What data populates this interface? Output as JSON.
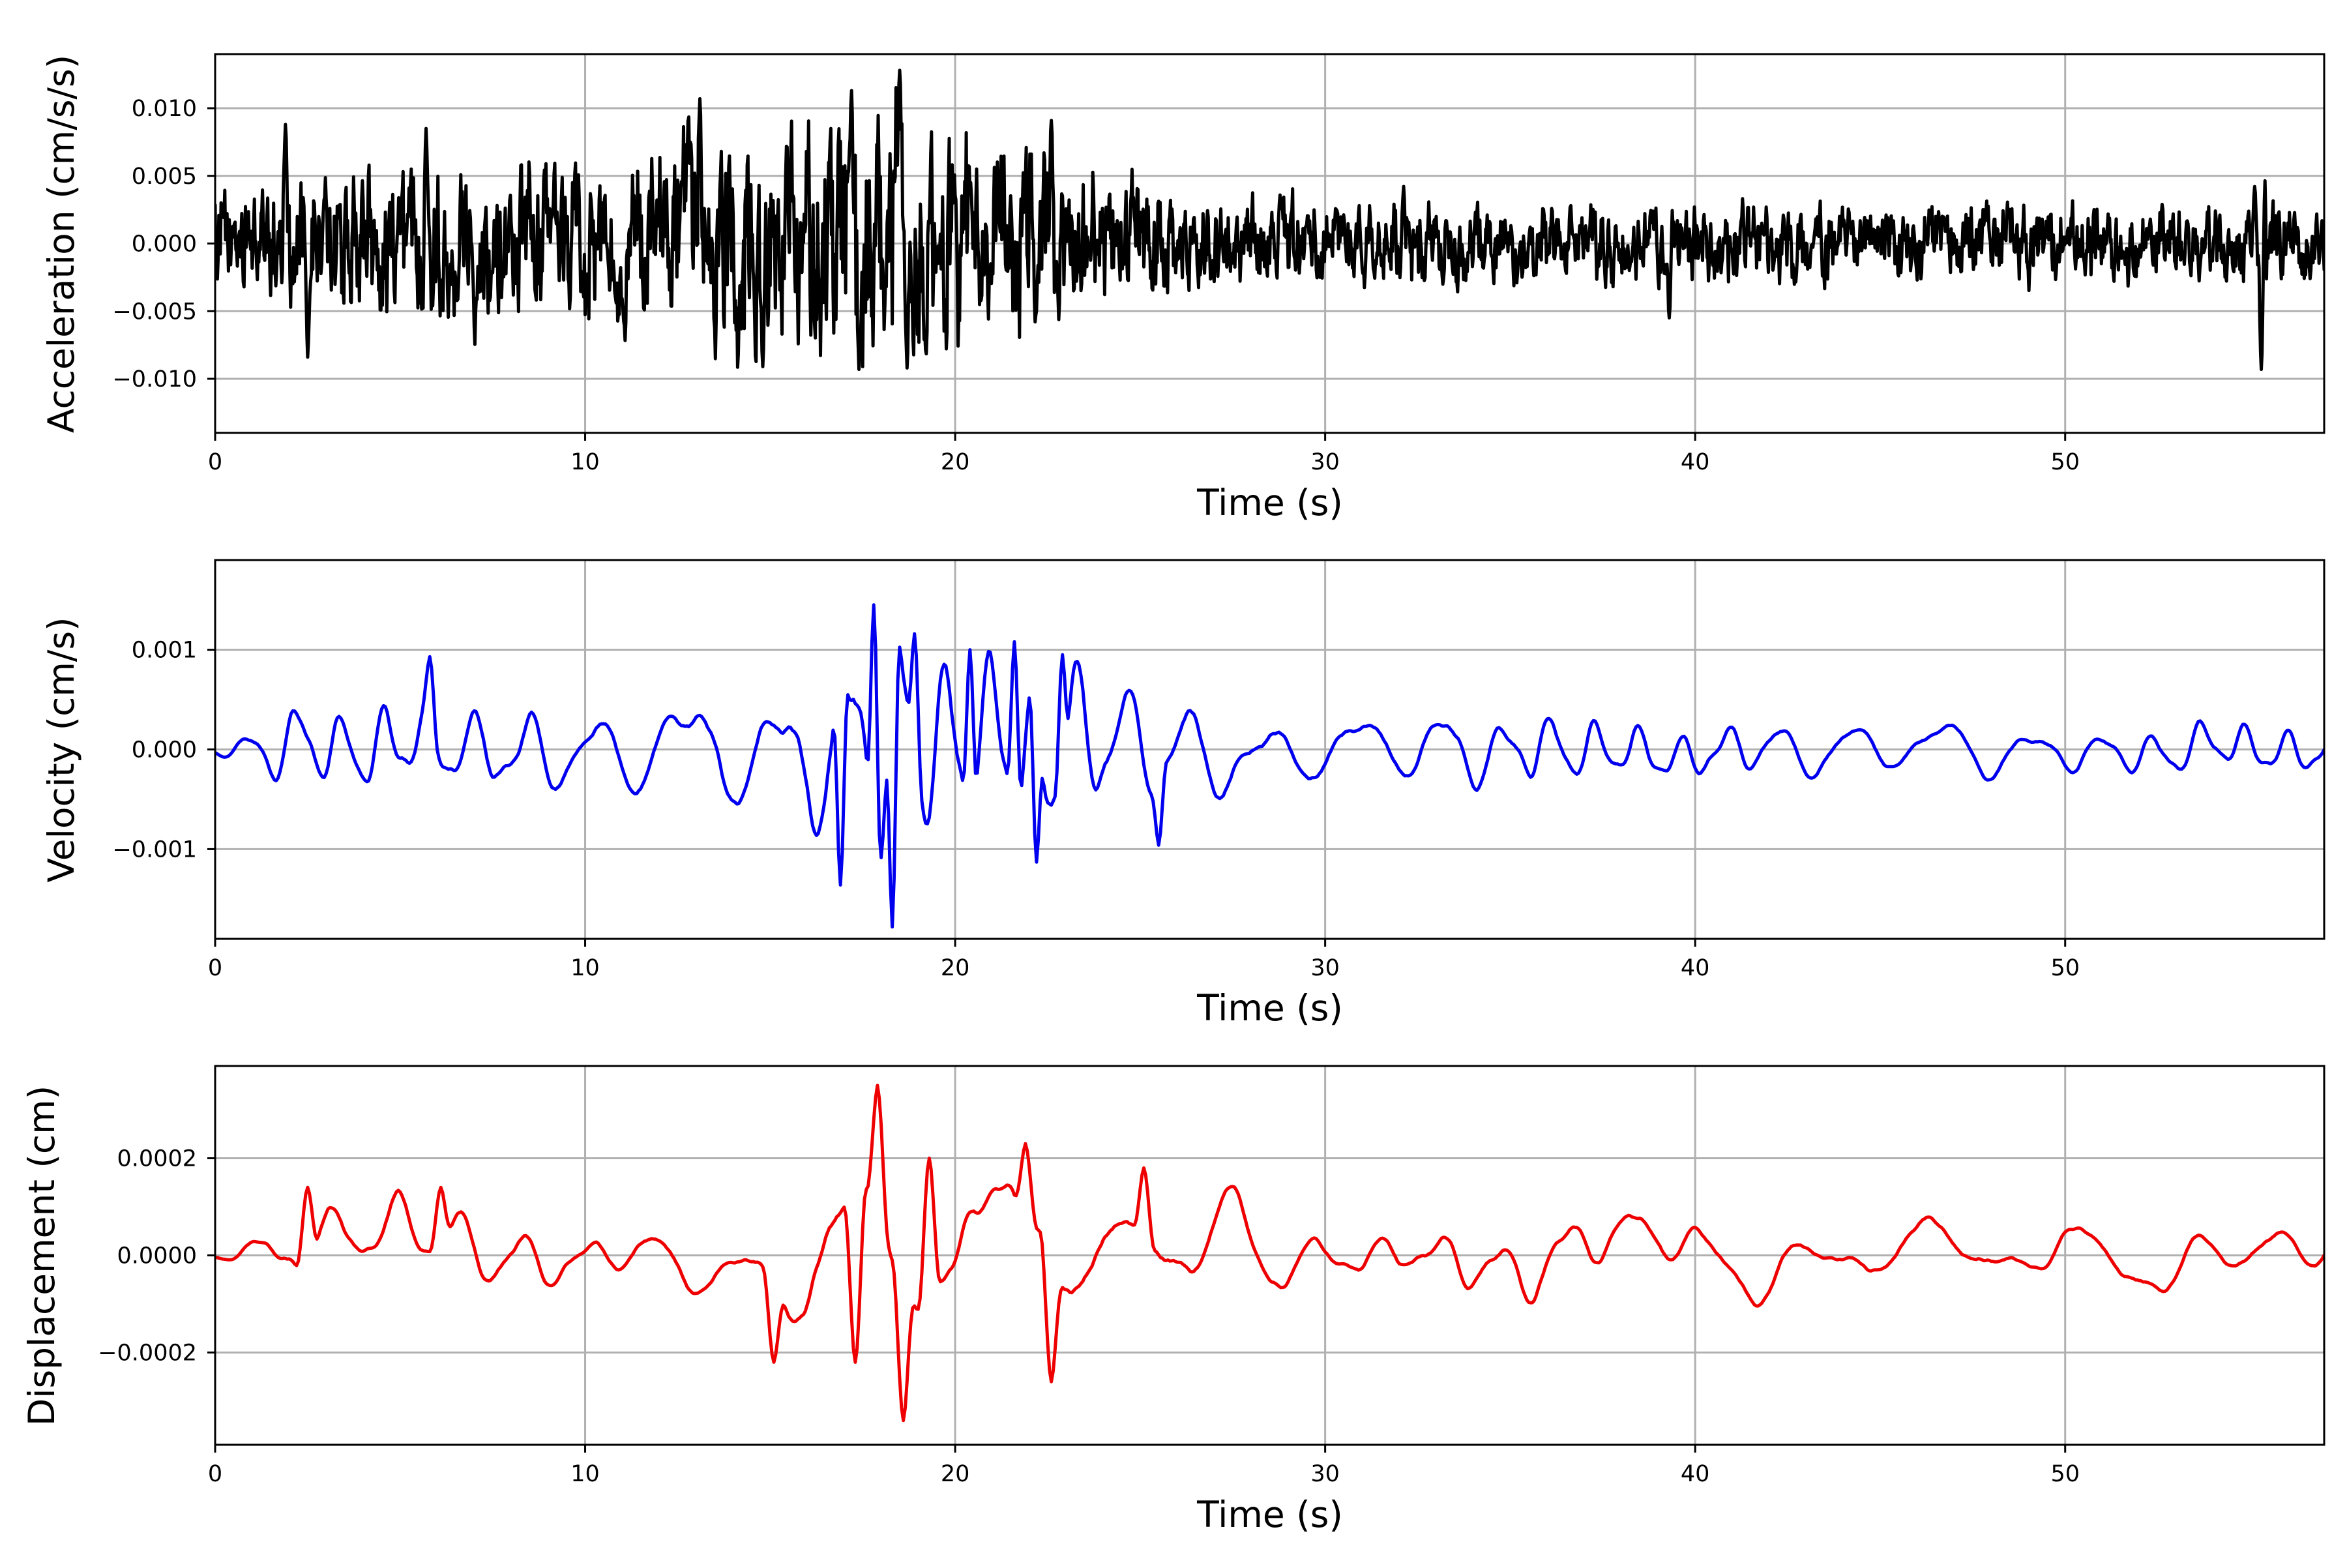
{
  "chart_data": [
    {
      "type": "line",
      "series": [
        {
          "color": "#000000",
          "x_start": 0,
          "x_end": 57,
          "dt": 0.02,
          "envelope": [
            [
              0,
              0.0022
            ],
            [
              2,
              0.003
            ],
            [
              6,
              0.0032
            ],
            [
              12,
              0.0033
            ],
            [
              13,
              0.0045
            ],
            [
              15,
              0.004
            ],
            [
              17.5,
              0.0062
            ],
            [
              19,
              0.005
            ],
            [
              22,
              0.0038
            ],
            [
              25,
              0.0025
            ],
            [
              30,
              0.0018
            ],
            [
              40,
              0.0016
            ],
            [
              55,
              0.0016
            ],
            [
              55.3,
              0.0035
            ],
            [
              55.8,
              0.0016
            ],
            [
              57,
              0.0017
            ]
          ],
          "peaks": [
            {
              "x": 1.9,
              "y": 0.0088
            },
            {
              "x": 2.5,
              "y": -0.0084
            },
            {
              "x": 5.7,
              "y": 0.0085
            },
            {
              "x": 13.1,
              "y": 0.0107
            },
            {
              "x": 14.8,
              "y": -0.0091
            },
            {
              "x": 17.2,
              "y": 0.0113
            },
            {
              "x": 17.4,
              "y": -0.0093
            },
            {
              "x": 18.5,
              "y": 0.0128
            },
            {
              "x": 18.7,
              "y": -0.0092
            },
            {
              "x": 22.6,
              "y": 0.0091
            },
            {
              "x": 39.3,
              "y": -0.0055
            },
            {
              "x": 55.3,
              "y": -0.0093
            }
          ]
        }
      ],
      "xlabel": "Time (s)",
      "ylabel": "Acceleration (cm/s/s)",
      "xlim": [
        0,
        57
      ],
      "ylim": [
        -0.014,
        0.014
      ],
      "xticks": [
        0,
        10,
        20,
        30,
        40,
        50
      ],
      "xtick_labels": [
        "0",
        "10",
        "20",
        "30",
        "40",
        "50"
      ],
      "yticks": [
        0.01,
        0.005,
        0,
        -0.005,
        -0.01
      ],
      "ytick_labels": [
        "0.010",
        "0.005",
        "0.000",
        "−0.005",
        "−0.010"
      ],
      "grid": true
    },
    {
      "type": "line",
      "series": [
        {
          "color": "#0000ee",
          "x_start": 0,
          "x_end": 57,
          "dt": 0.05,
          "envelope": [
            [
              0,
              5e-05
            ],
            [
              1,
              0.0002
            ],
            [
              2,
              0.0004
            ],
            [
              5,
              0.0005
            ],
            [
              10,
              0.00045
            ],
            [
              14,
              0.0006
            ],
            [
              16,
              0.0008
            ],
            [
              17.8,
              0.00145
            ],
            [
              18.3,
              0.00175
            ],
            [
              19,
              0.0011
            ],
            [
              21.5,
              0.001
            ],
            [
              23,
              0.0009
            ],
            [
              25,
              0.0006
            ],
            [
              30,
              0.0004
            ],
            [
              34,
              0.0004
            ],
            [
              40,
              0.00028
            ],
            [
              57,
              0.00025
            ]
          ],
          "peaks": [
            {
              "x": 5.8,
              "y": 0.00093
            },
            {
              "x": 16.9,
              "y": -0.00136
            },
            {
              "x": 17.8,
              "y": 0.00145
            },
            {
              "x": 18.3,
              "y": -0.00178
            },
            {
              "x": 18.9,
              "y": 0.00116
            },
            {
              "x": 20.4,
              "y": 0.001
            },
            {
              "x": 21.6,
              "y": 0.00108
            },
            {
              "x": 22.2,
              "y": -0.00113
            },
            {
              "x": 22.9,
              "y": 0.00095
            },
            {
              "x": 25.5,
              "y": -0.00096
            }
          ]
        }
      ],
      "xlabel": "Time (s)",
      "ylabel": "Velocity (cm/s)",
      "xlim": [
        0,
        57
      ],
      "ylim": [
        -0.0019,
        0.0019
      ],
      "xticks": [
        0,
        10,
        20,
        30,
        40,
        50
      ],
      "xtick_labels": [
        "0",
        "10",
        "20",
        "30",
        "40",
        "50"
      ],
      "yticks": [
        0.001,
        0,
        -0.001
      ],
      "ytick_labels": [
        "0.001",
        "0.000",
        "−0.001"
      ],
      "grid": true
    },
    {
      "type": "line",
      "series": [
        {
          "color": "#ee0000",
          "x_start": 0,
          "x_end": 57,
          "dt": 0.05,
          "envelope": [
            [
              0,
              1e-05
            ],
            [
              1,
              5e-05
            ],
            [
              2.4,
              0.00014
            ],
            [
              6,
              0.00013
            ],
            [
              10,
              8e-05
            ],
            [
              14,
              0.0001
            ],
            [
              15,
              0.0002
            ],
            [
              17.3,
              0.00024
            ],
            [
              18,
              0.00035
            ],
            [
              18.6,
              0.00034
            ],
            [
              19.3,
              0.00021
            ],
            [
              22,
              0.00024
            ],
            [
              25,
              0.00018
            ],
            [
              27,
              0.00013
            ],
            [
              30,
              9e-05
            ],
            [
              34,
              0.00012
            ],
            [
              40,
              0.0001
            ],
            [
              46,
              0.0001
            ],
            [
              57,
              9e-05
            ]
          ],
          "peaks": [
            {
              "x": 2.5,
              "y": 0.00014
            },
            {
              "x": 6.1,
              "y": 0.00014
            },
            {
              "x": 15.1,
              "y": -0.00022
            },
            {
              "x": 17.3,
              "y": -0.00022
            },
            {
              "x": 17.9,
              "y": 0.00035
            },
            {
              "x": 18.6,
              "y": -0.00034
            },
            {
              "x": 19.3,
              "y": 0.0002
            },
            {
              "x": 21.9,
              "y": 0.00023
            },
            {
              "x": 22.6,
              "y": -0.00026
            },
            {
              "x": 25.1,
              "y": 0.00018
            }
          ]
        }
      ],
      "xlabel": "Time (s)",
      "ylabel": "Displacement (cm)",
      "xlim": [
        0,
        57
      ],
      "ylim": [
        -0.00039,
        0.00039
      ],
      "xticks": [
        0,
        10,
        20,
        30,
        40,
        50
      ],
      "xtick_labels": [
        "0",
        "10",
        "20",
        "30",
        "40",
        "50"
      ],
      "yticks": [
        0.0002,
        0,
        -0.0002
      ],
      "ytick_labels": [
        "0.0002",
        "0.0000",
        "−0.0002"
      ],
      "grid": true
    }
  ]
}
